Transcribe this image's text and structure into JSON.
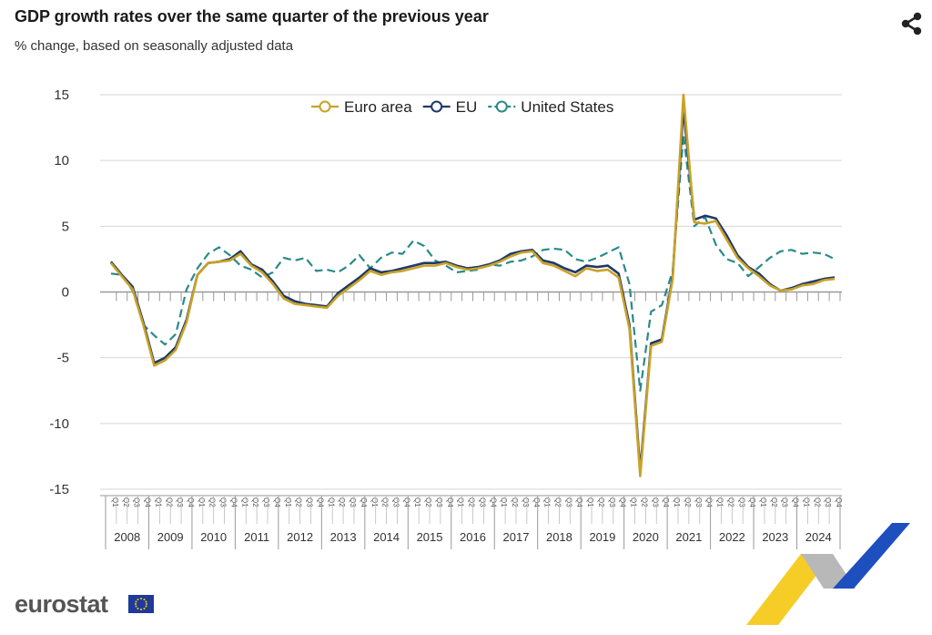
{
  "header": {
    "title": "GDP growth rates over the same quarter of the previous year",
    "subtitle": "% change, based on seasonally adjusted data",
    "share_icon": "share-icon"
  },
  "footer": {
    "brand": "eurostat",
    "flag_icon": "eu-flag-icon"
  },
  "chart_data": {
    "type": "line",
    "ylim": [
      -15,
      15
    ],
    "yticks": [
      15,
      10,
      5,
      0,
      -5,
      -10,
      -15
    ],
    "grid": true,
    "legend_position": "top-center",
    "quarter_labels": [
      "Q1",
      "Q2",
      "Q3",
      "Q4"
    ],
    "years": [
      "2008",
      "2009",
      "2010",
      "2011",
      "2012",
      "2013",
      "2014",
      "2015",
      "2016",
      "2017",
      "2018",
      "2019",
      "2020",
      "2021",
      "2022",
      "2023",
      "2024"
    ],
    "series": [
      {
        "name": "Euro area",
        "color": "#c9a227",
        "dash": "solid",
        "values": [
          2.2,
          1.2,
          0.2,
          -2.5,
          -5.6,
          -5.2,
          -4.4,
          -2.3,
          1.3,
          2.2,
          2.3,
          2.4,
          2.9,
          2.0,
          1.5,
          0.6,
          -0.5,
          -0.9,
          -1.0,
          -1.1,
          -1.2,
          -0.3,
          0.3,
          0.9,
          1.6,
          1.3,
          1.5,
          1.6,
          1.8,
          2.0,
          2.0,
          2.2,
          1.9,
          1.7,
          1.8,
          2.0,
          2.3,
          2.7,
          3.0,
          3.1,
          2.2,
          2.0,
          1.6,
          1.2,
          1.8,
          1.6,
          1.7,
          1.1,
          -2.8,
          -14.0,
          -4.1,
          -3.8,
          1.0,
          15.0,
          5.3,
          5.2,
          5.4,
          4.0,
          2.6,
          1.8,
          1.2,
          0.5,
          0.1,
          0.2,
          0.5,
          0.6,
          0.9,
          1.0
        ]
      },
      {
        "name": "EU",
        "color": "#1f3a68",
        "dash": "solid",
        "values": [
          2.3,
          1.3,
          0.4,
          -2.3,
          -5.4,
          -5.0,
          -4.2,
          -2.1,
          1.3,
          2.2,
          2.3,
          2.5,
          3.1,
          2.1,
          1.7,
          0.8,
          -0.3,
          -0.7,
          -0.9,
          -1.0,
          -1.1,
          -0.1,
          0.5,
          1.1,
          1.8,
          1.5,
          1.6,
          1.8,
          2.0,
          2.2,
          2.2,
          2.3,
          2.0,
          1.8,
          1.9,
          2.1,
          2.4,
          2.9,
          3.1,
          3.2,
          2.4,
          2.2,
          1.8,
          1.5,
          2.0,
          1.9,
          2.0,
          1.4,
          -2.5,
          -13.6,
          -3.9,
          -3.6,
          1.2,
          14.0,
          5.5,
          5.8,
          5.6,
          4.3,
          2.8,
          1.9,
          1.4,
          0.6,
          0.1,
          0.3,
          0.6,
          0.8,
          1.0,
          1.1
        ]
      },
      {
        "name": "United States",
        "color": "#2a8a8a",
        "dash": "dashed",
        "values": [
          1.4,
          1.3,
          0.1,
          -2.5,
          -3.3,
          -4.0,
          -3.2,
          0.2,
          1.8,
          2.9,
          3.4,
          2.8,
          2.0,
          1.7,
          1.1,
          1.5,
          2.6,
          2.4,
          2.6,
          1.6,
          1.7,
          1.5,
          2.0,
          2.8,
          1.8,
          2.6,
          3.0,
          2.9,
          3.9,
          3.5,
          2.4,
          2.0,
          1.5,
          1.6,
          1.7,
          2.1,
          2.0,
          2.3,
          2.4,
          2.7,
          3.2,
          3.3,
          3.2,
          2.5,
          2.3,
          2.6,
          3.0,
          3.4,
          0.6,
          -7.5,
          -1.5,
          -1.0,
          1.6,
          12.0,
          5.0,
          5.7,
          3.6,
          2.5,
          2.2,
          1.2,
          1.9,
          2.6,
          3.1,
          3.2,
          2.9,
          3.0,
          2.9,
          2.5
        ]
      }
    ]
  }
}
